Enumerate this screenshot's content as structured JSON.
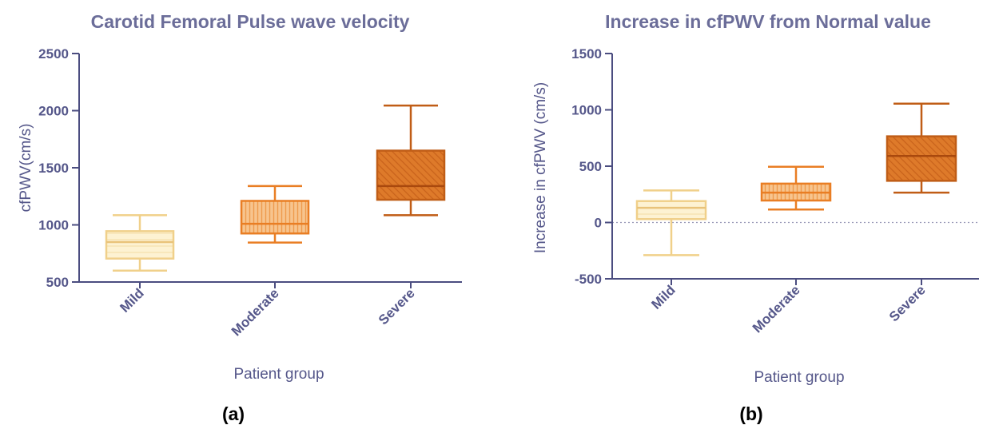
{
  "colors": {
    "axis": "#4b4d80",
    "text": "#55578a",
    "title": "#6b6d99",
    "reference_line": "#9a9ab8",
    "groups": [
      {
        "fill": "#fdf2d2",
        "stroke": "#f0d08a",
        "median": "#e9c37a"
      },
      {
        "fill": "#f7c48e",
        "stroke": "#e97e24",
        "median": "#e97e24"
      },
      {
        "fill": "#de7a2a",
        "stroke": "#c05d16",
        "median": "#a9490e"
      }
    ]
  },
  "chart_data": [
    {
      "type": "box",
      "panel_label": "(a)",
      "title": "Carotid Femoral Pulse wave velocity",
      "xlabel": "Patient group",
      "ylabel": "cfPWV(cm/s)",
      "ylim": [
        500,
        2500
      ],
      "yticks": [
        500,
        1000,
        1500,
        2000,
        2500
      ],
      "categories": [
        "Mild",
        "Moderate",
        "Severe"
      ],
      "boxes": [
        {
          "min": 600,
          "q1": 705,
          "median": 850,
          "q3": 945,
          "max": 1085
        },
        {
          "min": 845,
          "q1": 925,
          "median": 1010,
          "q3": 1210,
          "max": 1340
        },
        {
          "min": 1085,
          "q1": 1220,
          "median": 1340,
          "q3": 1650,
          "max": 2045
        }
      ],
      "reference_line": null
    },
    {
      "type": "box",
      "panel_label": "(b)",
      "title": "Increase in cfPWV from Normal value",
      "xlabel": "Patient group",
      "ylabel": "Increase in cfPWV (cm/s)",
      "ylim": [
        -500,
        1500
      ],
      "yticks": [
        -500,
        0,
        500,
        1000,
        1500
      ],
      "categories": [
        "Mild",
        "Moderate",
        "Severe"
      ],
      "boxes": [
        {
          "min": -290,
          "q1": 30,
          "median": 130,
          "q3": 190,
          "max": 285
        },
        {
          "min": 115,
          "q1": 195,
          "median": 265,
          "q3": 345,
          "max": 495
        },
        {
          "min": 265,
          "q1": 370,
          "median": 590,
          "q3": 765,
          "max": 1055
        }
      ],
      "reference_line": 0
    }
  ]
}
